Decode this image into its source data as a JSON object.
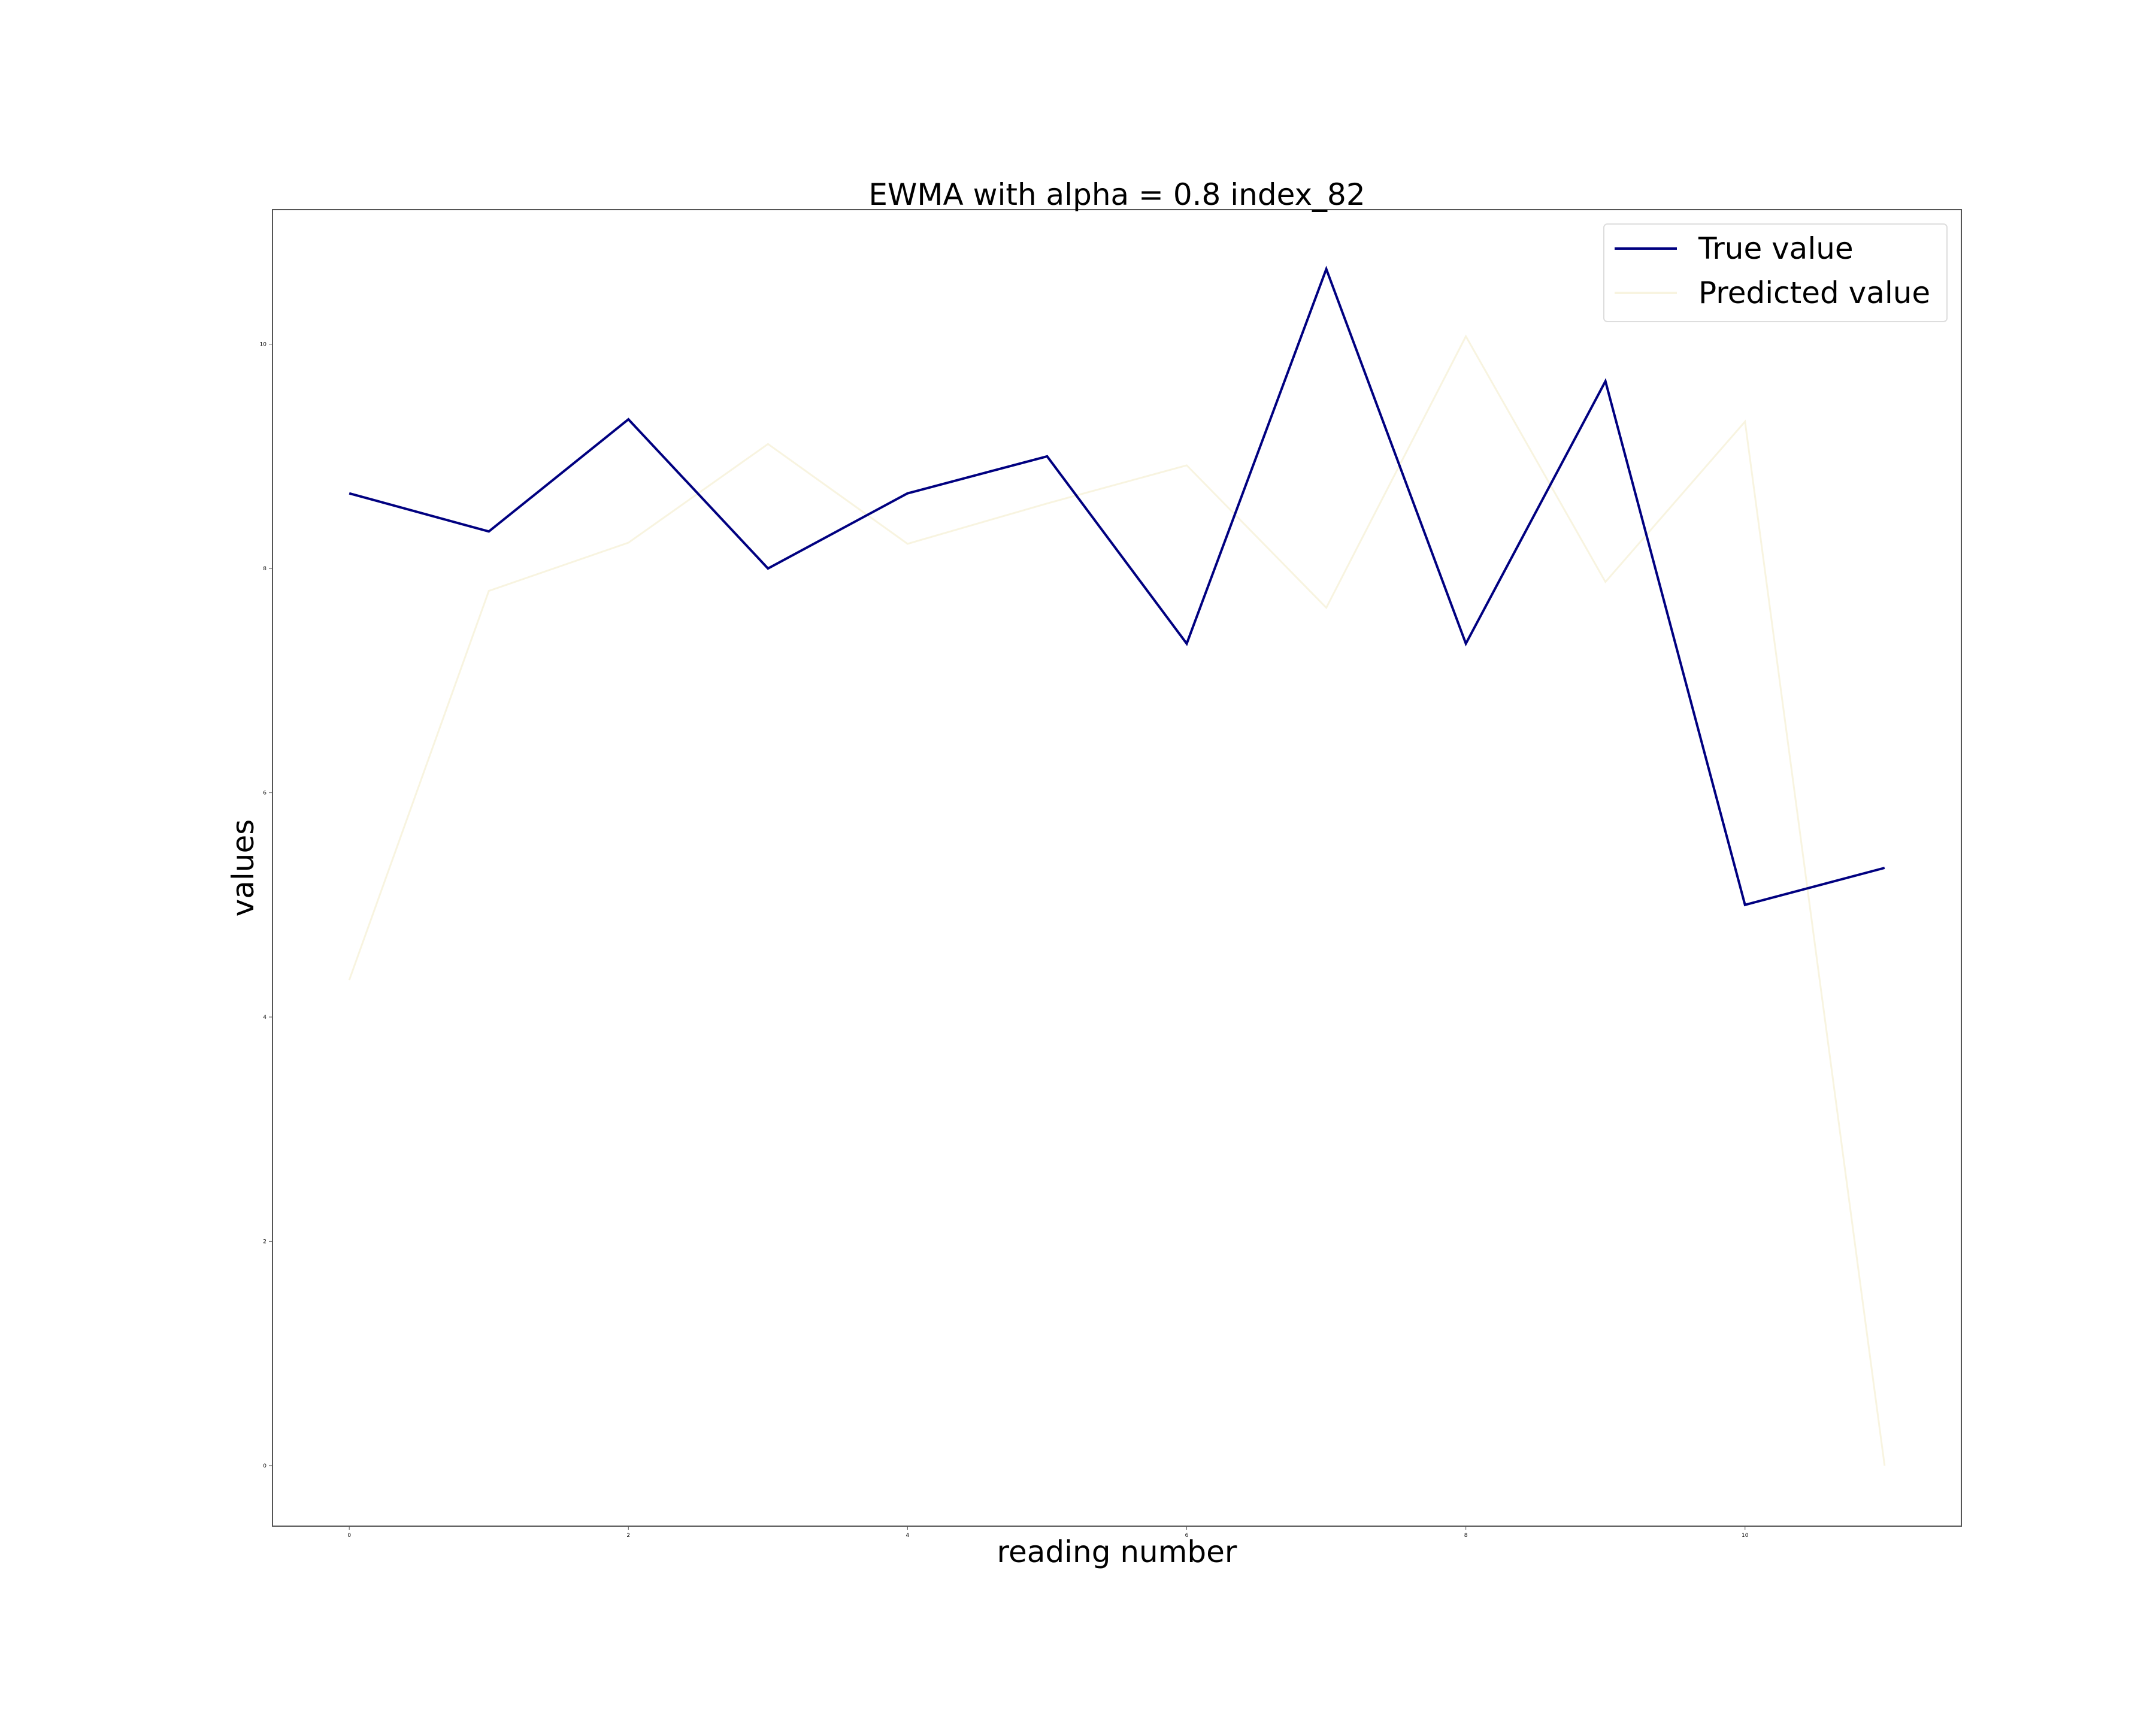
{
  "chart_data": {
    "type": "line",
    "title": "EWMA with alpha = 0.8 index_82",
    "xlabel": "reading number",
    "ylabel": "values",
    "x": [
      0,
      1,
      2,
      3,
      4,
      5,
      6,
      7,
      8,
      9,
      10,
      11
    ],
    "xlim": [
      -0.55,
      11.55
    ],
    "ylim": [
      -0.54,
      11.2
    ],
    "xticks": [
      0,
      2,
      4,
      6,
      8,
      10
    ],
    "yticks": [
      0,
      2,
      4,
      6,
      8,
      10
    ],
    "grid": false,
    "legend_position": "top-right",
    "series": [
      {
        "name": "True value",
        "color": "#000080",
        "values": [
          8.67,
          8.33,
          9.33,
          8.0,
          8.67,
          9.0,
          7.33,
          10.67,
          7.33,
          9.67,
          5.0,
          5.33
        ]
      },
      {
        "name": "Predicted value",
        "color": "#f8f4e0",
        "values": [
          4.33,
          7.8,
          8.23,
          9.11,
          8.22,
          8.58,
          8.92,
          7.65,
          10.07,
          7.88,
          9.31,
          0.0
        ]
      }
    ]
  }
}
